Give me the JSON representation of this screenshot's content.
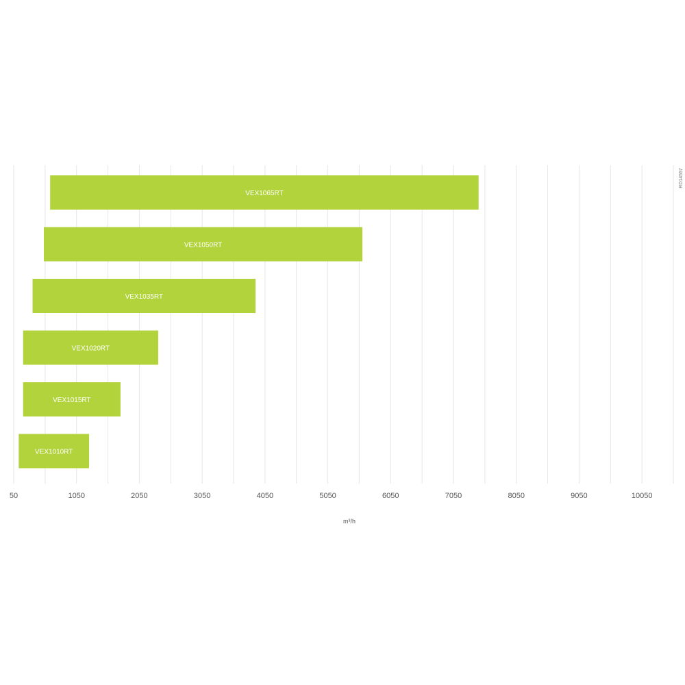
{
  "chart_data": {
    "type": "bar",
    "orientation": "horizontal",
    "bar_style": "range",
    "categories": [
      "VEX1065RT",
      "VEX1050RT",
      "VEX1035RT",
      "VEX1020RT",
      "VEX1015RT",
      "VEX1010RT"
    ],
    "ranges": [
      [
        630,
        7450
      ],
      [
        530,
        5600
      ],
      [
        350,
        3900
      ],
      [
        200,
        2350
      ],
      [
        200,
        1750
      ],
      [
        130,
        1250
      ]
    ],
    "xlabel": "m³/h",
    "xlim": [
      50,
      10550
    ],
    "xticks": [
      50,
      1050,
      2050,
      3050,
      4050,
      5050,
      6050,
      7050,
      8050,
      9050,
      10050
    ],
    "grid": true,
    "bar_color": "#b2d33b",
    "grid_color": "#e6e6e6",
    "reference": "RD14557"
  }
}
